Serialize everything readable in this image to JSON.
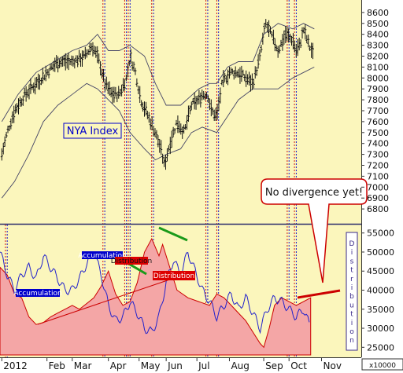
{
  "chart_data": [
    {
      "type": "candlestick",
      "title": "NYA Index",
      "y_ticks": [
        6800,
        6900,
        7000,
        7100,
        7200,
        7300,
        7400,
        7500,
        7600,
        7700,
        7800,
        7900,
        8000,
        8100,
        8200,
        8300,
        8400,
        8500,
        8600
      ],
      "ylim": [
        6700,
        8700
      ],
      "xlim": [
        0,
        1
      ],
      "price_path": [
        [
          0.005,
          7300
        ],
        [
          0.02,
          7500
        ],
        [
          0.04,
          7700
        ],
        [
          0.07,
          7850
        ],
        [
          0.1,
          7950
        ],
        [
          0.13,
          8050
        ],
        [
          0.16,
          8150
        ],
        [
          0.2,
          8150
        ],
        [
          0.235,
          8200
        ],
        [
          0.255,
          8300
        ],
        [
          0.275,
          8150
        ],
        [
          0.29,
          7950
        ],
        [
          0.31,
          7850
        ],
        [
          0.33,
          7850
        ],
        [
          0.35,
          8000
        ],
        [
          0.36,
          8200
        ],
        [
          0.375,
          8050
        ],
        [
          0.39,
          7800
        ],
        [
          0.41,
          7650
        ],
        [
          0.43,
          7500
        ],
        [
          0.445,
          7350
        ],
        [
          0.455,
          7200
        ],
        [
          0.47,
          7400
        ],
        [
          0.49,
          7600
        ],
        [
          0.51,
          7500
        ],
        [
          0.53,
          7750
        ],
        [
          0.55,
          7800
        ],
        [
          0.56,
          7850
        ],
        [
          0.575,
          7850
        ],
        [
          0.585,
          7700
        ],
        [
          0.6,
          7650
        ],
        [
          0.615,
          7950
        ],
        [
          0.635,
          8050
        ],
        [
          0.66,
          8050
        ],
        [
          0.68,
          8000
        ],
        [
          0.7,
          7950
        ],
        [
          0.72,
          8200
        ],
        [
          0.735,
          8500
        ],
        [
          0.75,
          8400
        ],
        [
          0.77,
          8250
        ],
        [
          0.79,
          8400
        ],
        [
          0.81,
          8350
        ],
        [
          0.82,
          8250
        ],
        [
          0.83,
          8300
        ],
        [
          0.84,
          8450
        ],
        [
          0.855,
          8300
        ],
        [
          0.87,
          8200
        ]
      ],
      "bollinger_upper": [
        [
          0.005,
          7600
        ],
        [
          0.05,
          7850
        ],
        [
          0.1,
          8050
        ],
        [
          0.15,
          8150
        ],
        [
          0.2,
          8250
        ],
        [
          0.24,
          8300
        ],
        [
          0.27,
          8400
        ],
        [
          0.3,
          8250
        ],
        [
          0.33,
          8250
        ],
        [
          0.36,
          8300
        ],
        [
          0.4,
          8200
        ],
        [
          0.43,
          7950
        ],
        [
          0.46,
          7750
        ],
        [
          0.5,
          7750
        ],
        [
          0.55,
          7900
        ],
        [
          0.58,
          7950
        ],
        [
          0.6,
          7950
        ],
        [
          0.63,
          8100
        ],
        [
          0.66,
          8150
        ],
        [
          0.7,
          8150
        ],
        [
          0.73,
          8400
        ],
        [
          0.77,
          8500
        ],
        [
          0.81,
          8450
        ],
        [
          0.84,
          8500
        ],
        [
          0.87,
          8450
        ]
      ],
      "bollinger_lower": [
        [
          0.005,
          6900
        ],
        [
          0.04,
          7050
        ],
        [
          0.08,
          7300
        ],
        [
          0.12,
          7600
        ],
        [
          0.16,
          7750
        ],
        [
          0.2,
          7850
        ],
        [
          0.24,
          7950
        ],
        [
          0.27,
          7900
        ],
        [
          0.3,
          7800
        ],
        [
          0.33,
          7700
        ],
        [
          0.36,
          7500
        ],
        [
          0.4,
          7350
        ],
        [
          0.43,
          7250
        ],
        [
          0.46,
          7300
        ],
        [
          0.5,
          7350
        ],
        [
          0.53,
          7500
        ],
        [
          0.56,
          7550
        ],
        [
          0.6,
          7500
        ],
        [
          0.63,
          7650
        ],
        [
          0.66,
          7800
        ],
        [
          0.7,
          7900
        ],
        [
          0.73,
          7900
        ],
        [
          0.77,
          7900
        ],
        [
          0.81,
          8000
        ],
        [
          0.84,
          8050
        ],
        [
          0.87,
          8100
        ]
      ],
      "annotations": [
        {
          "text": "No divergence yet!"
        }
      ]
    },
    {
      "type": "area",
      "y_ticks": [
        25000,
        30000,
        35000,
        40000,
        45000,
        50000,
        55000
      ],
      "ylim": [
        23000,
        57000
      ],
      "xlim": [
        0,
        1
      ],
      "unit_label": "x10000",
      "x_ticks": [
        "2012",
        "Feb",
        "Mar",
        "Apr",
        "May",
        "Jun",
        "Jul",
        "Aug",
        "Sep",
        "Oct",
        "Nov"
      ],
      "x_tick_positions": [
        0.005,
        0.13,
        0.2,
        0.3,
        0.385,
        0.46,
        0.545,
        0.635,
        0.73,
        0.8,
        0.89
      ],
      "series": [
        {
          "type": "area",
          "color": "#f4a6a6",
          "points": [
            [
              0.0,
              46000
            ],
            [
              0.02,
              44000
            ],
            [
              0.04,
              39000
            ],
            [
              0.06,
              38000
            ],
            [
              0.08,
              33000
            ],
            [
              0.1,
              31000
            ],
            [
              0.12,
              31500
            ],
            [
              0.14,
              33000
            ],
            [
              0.16,
              34000
            ],
            [
              0.18,
              35000
            ],
            [
              0.2,
              36000
            ],
            [
              0.22,
              35000
            ],
            [
              0.24,
              36500
            ],
            [
              0.26,
              38000
            ],
            [
              0.28,
              41000
            ],
            [
              0.3,
              45000
            ],
            [
              0.32,
              39000
            ],
            [
              0.34,
              36000
            ],
            [
              0.36,
              37000
            ],
            [
              0.38,
              42000
            ],
            [
              0.4,
              50000
            ],
            [
              0.42,
              53500
            ],
            [
              0.44,
              49000
            ],
            [
              0.45,
              52000
            ],
            [
              0.47,
              46000
            ],
            [
              0.49,
              40000
            ],
            [
              0.52,
              38000
            ],
            [
              0.55,
              37000
            ],
            [
              0.58,
              36000
            ],
            [
              0.6,
              39000
            ],
            [
              0.62,
              38000
            ],
            [
              0.64,
              36000
            ],
            [
              0.66,
              34000
            ],
            [
              0.68,
              32000
            ],
            [
              0.7,
              29000
            ],
            [
              0.72,
              26000
            ],
            [
              0.73,
              25000
            ],
            [
              0.745,
              30000
            ],
            [
              0.76,
              36000
            ],
            [
              0.78,
              38000
            ],
            [
              0.8,
              37000
            ],
            [
              0.82,
              36000
            ],
            [
              0.84,
              37000
            ],
            [
              0.86,
              38000
            ]
          ]
        },
        {
          "type": "line",
          "color": "#2222cc",
          "points": [
            [
              0.0,
              50000
            ],
            [
              0.02,
              44000
            ],
            [
              0.04,
              40000
            ],
            [
              0.06,
              44000
            ],
            [
              0.08,
              46000
            ],
            [
              0.1,
              43000
            ],
            [
              0.12,
              49000
            ],
            [
              0.14,
              46000
            ],
            [
              0.16,
              43000
            ],
            [
              0.18,
              40000
            ],
            [
              0.2,
              40000
            ],
            [
              0.22,
              43000
            ],
            [
              0.24,
              47000
            ],
            [
              0.26,
              50000
            ],
            [
              0.28,
              44000
            ],
            [
              0.3,
              36000
            ],
            [
              0.32,
              32000
            ],
            [
              0.34,
              33000
            ],
            [
              0.36,
              37000
            ],
            [
              0.38,
              34000
            ],
            [
              0.4,
              30000
            ],
            [
              0.42,
              29000
            ],
            [
              0.44,
              33000
            ],
            [
              0.46,
              42000
            ],
            [
              0.48,
              48000
            ],
            [
              0.5,
              44000
            ],
            [
              0.52,
              50000
            ],
            [
              0.54,
              45000
            ],
            [
              0.56,
              40000
            ],
            [
              0.58,
              37000
            ],
            [
              0.6,
              33000
            ],
            [
              0.62,
              36000
            ],
            [
              0.64,
              39000
            ],
            [
              0.66,
              35000
            ],
            [
              0.68,
              38000
            ],
            [
              0.7,
              34000
            ],
            [
              0.72,
              30000
            ],
            [
              0.74,
              35000
            ],
            [
              0.76,
              38000
            ],
            [
              0.78,
              37000
            ],
            [
              0.8,
              35000
            ],
            [
              0.82,
              33000
            ],
            [
              0.84,
              35000
            ],
            [
              0.86,
              30000
            ]
          ]
        }
      ],
      "annotations": [
        {
          "text": "Accumulation",
          "style": "blue-box"
        },
        {
          "text": "Accumulation",
          "style": "blue-box"
        },
        {
          "text": "Distribution",
          "style": "red-box"
        },
        {
          "text": "Distribution",
          "style": "red-box"
        },
        {
          "text": "Distribution",
          "style": "vertical-outline"
        }
      ]
    }
  ],
  "colors": {
    "plot_bg": "#fbf6bc",
    "price": "#111111",
    "band": "#444466",
    "oscillator": "#2222cc",
    "volume_area": "#f4a6a6",
    "grid_red": "#cc0000",
    "grid_blue": "#0000cc",
    "trend_red": "#cc0000",
    "trend_green": "#1a9a1a",
    "callout_border": "#cc0000",
    "label_blue": "#0000cc",
    "label_red": "#dd0000"
  },
  "vlines": [
    {
      "x": 0.285,
      "color": "red"
    },
    {
      "x": 0.29,
      "color": "blue"
    },
    {
      "x": 0.345,
      "color": "red"
    },
    {
      "x": 0.35,
      "color": "blue"
    },
    {
      "x": 0.355,
      "color": "red"
    },
    {
      "x": 0.36,
      "color": "blue"
    },
    {
      "x": 0.42,
      "color": "red"
    },
    {
      "x": 0.425,
      "color": "blue"
    },
    {
      "x": 0.57,
      "color": "red"
    },
    {
      "x": 0.575,
      "color": "blue"
    },
    {
      "x": 0.6,
      "color": "red"
    },
    {
      "x": 0.605,
      "color": "blue"
    },
    {
      "x": 0.795,
      "color": "red"
    },
    {
      "x": 0.8,
      "color": "blue"
    },
    {
      "x": 0.815,
      "color": "red"
    },
    {
      "x": 0.82,
      "color": "blue"
    }
  ],
  "panel_left_vlines": [
    0.015,
    0.02
  ]
}
